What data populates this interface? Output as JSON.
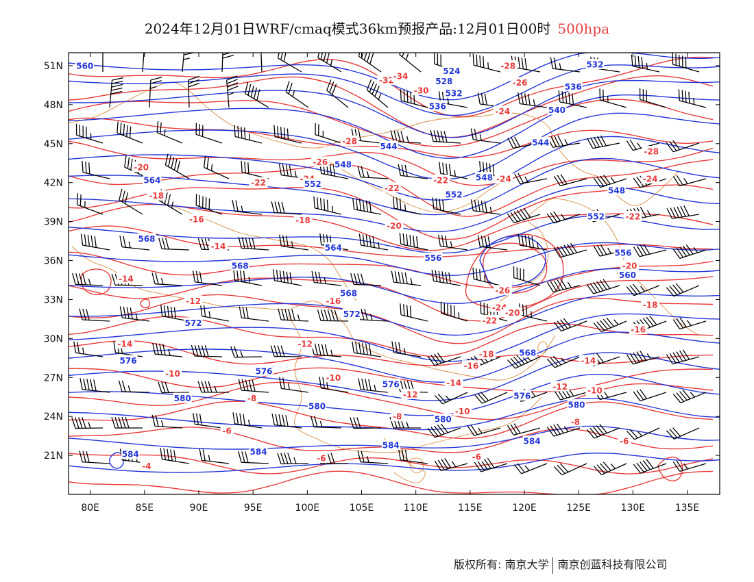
{
  "title": {
    "main": "2024年12月01日WRF/cmaq模式36km预报产品:12月01日00时",
    "level": "500hpa"
  },
  "axes": {
    "lat_labels": [
      "51N",
      "48N",
      "45N",
      "42N",
      "39N",
      "36N",
      "33N",
      "30N",
      "27N",
      "24N",
      "21N"
    ],
    "lat_values": [
      51,
      48,
      45,
      42,
      39,
      36,
      33,
      30,
      27,
      24,
      21
    ],
    "lon_labels": [
      "80E",
      "85E",
      "90E",
      "95E",
      "100E",
      "105E",
      "110E",
      "115E",
      "120E",
      "125E",
      "130E",
      "135E"
    ],
    "lon_values": [
      80,
      85,
      90,
      95,
      100,
      105,
      110,
      115,
      120,
      125,
      130,
      135
    ],
    "lon_range": [
      78,
      138
    ],
    "lat_range": [
      18,
      52
    ]
  },
  "colors": {
    "height_contour": "#2336d8",
    "temperature_contour": "#e83a3a",
    "boundary": "#d88a40",
    "wind_barb": "#000000"
  },
  "height_labels": [
    {
      "text": "560",
      "lon": 79.5,
      "lat": 51.0
    },
    {
      "text": "532",
      "lon": 126.5,
      "lat": 51.1
    },
    {
      "text": "524",
      "lon": 113.3,
      "lat": 50.6
    },
    {
      "text": "528",
      "lon": 112.6,
      "lat": 49.8
    },
    {
      "text": "532",
      "lon": 113.5,
      "lat": 48.9
    },
    {
      "text": "536",
      "lon": 112.0,
      "lat": 47.9
    },
    {
      "text": "536",
      "lon": 124.5,
      "lat": 49.4
    },
    {
      "text": "540",
      "lon": 123.0,
      "lat": 47.6
    },
    {
      "text": "544",
      "lon": 107.5,
      "lat": 44.8
    },
    {
      "text": "544",
      "lon": 121.5,
      "lat": 45.1
    },
    {
      "text": "548",
      "lon": 103.3,
      "lat": 43.4
    },
    {
      "text": "548",
      "lon": 116.3,
      "lat": 42.4
    },
    {
      "text": "548",
      "lon": 128.5,
      "lat": 41.4
    },
    {
      "text": "552",
      "lon": 100.5,
      "lat": 41.9
    },
    {
      "text": "552",
      "lon": 113.5,
      "lat": 41.1
    },
    {
      "text": "552",
      "lon": 126.6,
      "lat": 39.4
    },
    {
      "text": "556",
      "lon": 111.6,
      "lat": 36.2
    },
    {
      "text": "556",
      "lon": 129.1,
      "lat": 36.6
    },
    {
      "text": "560",
      "lon": 129.5,
      "lat": 34.9
    },
    {
      "text": "564",
      "lon": 85.7,
      "lat": 42.2
    },
    {
      "text": "564",
      "lon": 102.4,
      "lat": 37.0
    },
    {
      "text": "568",
      "lon": 85.2,
      "lat": 37.7
    },
    {
      "text": "568",
      "lon": 93.8,
      "lat": 35.6
    },
    {
      "text": "568",
      "lon": 103.8,
      "lat": 33.5
    },
    {
      "text": "568",
      "lon": 120.3,
      "lat": 28.9
    },
    {
      "text": "572",
      "lon": 89.5,
      "lat": 31.2
    },
    {
      "text": "572",
      "lon": 104.1,
      "lat": 31.9
    },
    {
      "text": "576",
      "lon": 83.5,
      "lat": 28.3
    },
    {
      "text": "576",
      "lon": 96.0,
      "lat": 27.5
    },
    {
      "text": "576",
      "lon": 107.7,
      "lat": 26.5
    },
    {
      "text": "576",
      "lon": 119.8,
      "lat": 25.6
    },
    {
      "text": "580",
      "lon": 88.5,
      "lat": 25.4
    },
    {
      "text": "580",
      "lon": 100.9,
      "lat": 24.8
    },
    {
      "text": "580",
      "lon": 112.5,
      "lat": 23.8
    },
    {
      "text": "580",
      "lon": 124.8,
      "lat": 24.9
    },
    {
      "text": "584",
      "lon": 83.7,
      "lat": 21.1
    },
    {
      "text": "584",
      "lon": 95.5,
      "lat": 21.3
    },
    {
      "text": "584",
      "lon": 107.7,
      "lat": 21.8
    },
    {
      "text": "584",
      "lon": 120.7,
      "lat": 22.1
    }
  ],
  "temperature_labels": [
    {
      "text": "-28",
      "lon": 118.5,
      "lat": 51.0
    },
    {
      "text": "-32",
      "lon": 107.3,
      "lat": 49.9
    },
    {
      "text": "-34",
      "lon": 108.6,
      "lat": 50.2
    },
    {
      "text": "-30",
      "lon": 110.5,
      "lat": 49.1
    },
    {
      "text": "-26",
      "lon": 119.6,
      "lat": 49.7
    },
    {
      "text": "-24",
      "lon": 118.0,
      "lat": 47.5
    },
    {
      "text": "-28",
      "lon": 103.9,
      "lat": 45.2
    },
    {
      "text": "-26",
      "lon": 101.2,
      "lat": 43.6
    },
    {
      "text": "-28",
      "lon": 131.7,
      "lat": 44.4
    },
    {
      "text": "-24",
      "lon": 100.0,
      "lat": 42.3
    },
    {
      "text": "-22",
      "lon": 95.5,
      "lat": 42.0
    },
    {
      "text": "-22",
      "lon": 107.8,
      "lat": 41.6
    },
    {
      "text": "-22",
      "lon": 112.3,
      "lat": 42.2
    },
    {
      "text": "-24",
      "lon": 118.1,
      "lat": 42.3
    },
    {
      "text": "-24",
      "lon": 131.6,
      "lat": 42.3
    },
    {
      "text": "-22",
      "lon": 130.0,
      "lat": 39.4
    },
    {
      "text": "-20",
      "lon": 84.7,
      "lat": 43.2
    },
    {
      "text": "-18",
      "lon": 86.1,
      "lat": 41.0
    },
    {
      "text": "-16",
      "lon": 89.8,
      "lat": 39.2
    },
    {
      "text": "-18",
      "lon": 99.6,
      "lat": 39.1
    },
    {
      "text": "-20",
      "lon": 108.0,
      "lat": 38.7
    },
    {
      "text": "-14",
      "lon": 91.8,
      "lat": 37.1
    },
    {
      "text": "-20",
      "lon": 129.7,
      "lat": 35.6
    },
    {
      "text": "-26",
      "lon": 118.0,
      "lat": 33.7
    },
    {
      "text": "-14",
      "lon": 83.3,
      "lat": 34.6
    },
    {
      "text": "-12",
      "lon": 89.5,
      "lat": 32.9
    },
    {
      "text": "-16",
      "lon": 102.4,
      "lat": 32.9
    },
    {
      "text": "-24",
      "lon": 117.7,
      "lat": 32.4
    },
    {
      "text": "-22",
      "lon": 116.8,
      "lat": 31.4
    },
    {
      "text": "-20",
      "lon": 118.9,
      "lat": 32.0
    },
    {
      "text": "-18",
      "lon": 131.6,
      "lat": 32.6
    },
    {
      "text": "-16",
      "lon": 130.5,
      "lat": 30.7
    },
    {
      "text": "-14",
      "lon": 83.2,
      "lat": 29.6
    },
    {
      "text": "-12",
      "lon": 99.8,
      "lat": 29.6
    },
    {
      "text": "-18",
      "lon": 116.5,
      "lat": 28.8
    },
    {
      "text": "-14",
      "lon": 125.9,
      "lat": 28.3
    },
    {
      "text": "-16",
      "lon": 115.1,
      "lat": 27.9
    },
    {
      "text": "-10",
      "lon": 87.6,
      "lat": 27.3
    },
    {
      "text": "-10",
      "lon": 102.4,
      "lat": 27.0
    },
    {
      "text": "-14",
      "lon": 113.5,
      "lat": 26.6
    },
    {
      "text": "-12",
      "lon": 123.3,
      "lat": 26.3
    },
    {
      "text": "-12",
      "lon": 109.5,
      "lat": 25.7
    },
    {
      "text": "-10",
      "lon": 126.5,
      "lat": 26.0
    },
    {
      "text": "-8",
      "lon": 94.9,
      "lat": 25.4
    },
    {
      "text": "-10",
      "lon": 114.3,
      "lat": 24.4
    },
    {
      "text": "-8",
      "lon": 108.3,
      "lat": 24.0
    },
    {
      "text": "-8",
      "lon": 124.7,
      "lat": 23.6
    },
    {
      "text": "-6",
      "lon": 92.6,
      "lat": 22.9
    },
    {
      "text": "-6",
      "lon": 129.2,
      "lat": 22.1
    },
    {
      "text": "-6",
      "lon": 101.3,
      "lat": 20.8
    },
    {
      "text": "-6",
      "lon": 115.6,
      "lat": 20.9
    },
    {
      "text": "-4",
      "lon": 85.2,
      "lat": 20.2
    }
  ],
  "footer": {
    "left": "版权所有: 南京大学",
    "right": "南京创蓝科技有限公司"
  }
}
